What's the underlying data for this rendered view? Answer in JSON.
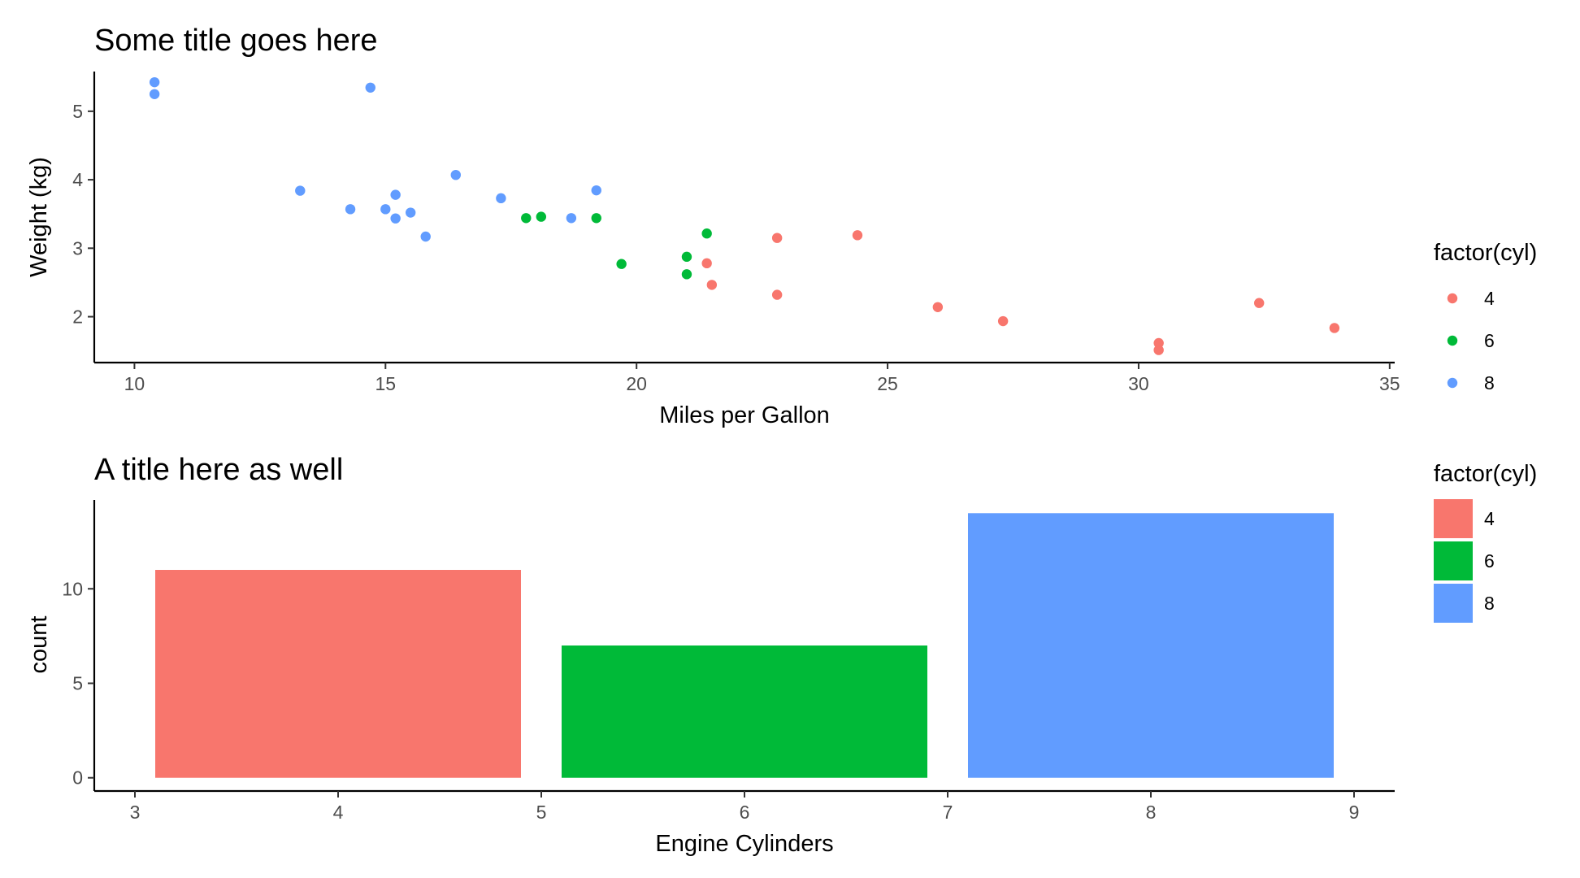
{
  "chart_data": [
    {
      "type": "scatter",
      "title": "Some title goes here",
      "xlabel": "Miles per Gallon",
      "ylabel": "Weight (kg)",
      "xlim": [
        9.2,
        35.1
      ],
      "ylim": [
        1.33,
        5.58
      ],
      "xticks": [
        10,
        15,
        20,
        25,
        30,
        35
      ],
      "yticks": [
        2,
        3,
        4,
        5
      ],
      "grid": false,
      "legend": {
        "title": "factor(cyl)",
        "position": "right",
        "items": [
          "4",
          "6",
          "8"
        ]
      },
      "series": [
        {
          "name": "4",
          "color": "#F8766D",
          "points": [
            [
              22.8,
              2.32
            ],
            [
              24.4,
              3.19
            ],
            [
              22.8,
              3.15
            ],
            [
              32.4,
              2.2
            ],
            [
              30.4,
              1.615
            ],
            [
              33.9,
              1.835
            ],
            [
              21.5,
              2.465
            ],
            [
              27.3,
              1.935
            ],
            [
              26.0,
              2.14
            ],
            [
              30.4,
              1.513
            ],
            [
              21.4,
              2.78
            ]
          ]
        },
        {
          "name": "6",
          "color": "#00BA38",
          "points": [
            [
              21.0,
              2.62
            ],
            [
              21.0,
              2.875
            ],
            [
              21.4,
              3.215
            ],
            [
              18.1,
              3.46
            ],
            [
              19.2,
              3.44
            ],
            [
              17.8,
              3.44
            ],
            [
              19.7,
              2.77
            ]
          ]
        },
        {
          "name": "8",
          "color": "#619CFF",
          "points": [
            [
              18.7,
              3.44
            ],
            [
              14.3,
              3.57
            ],
            [
              16.4,
              4.07
            ],
            [
              17.3,
              3.73
            ],
            [
              15.2,
              3.78
            ],
            [
              10.4,
              5.25
            ],
            [
              10.4,
              5.424
            ],
            [
              14.7,
              5.345
            ],
            [
              15.5,
              3.52
            ],
            [
              15.2,
              3.435
            ],
            [
              13.3,
              3.84
            ],
            [
              19.2,
              3.845
            ],
            [
              15.8,
              3.17
            ],
            [
              15.0,
              3.57
            ]
          ]
        }
      ]
    },
    {
      "type": "bar",
      "title": "A title here as well",
      "xlabel": "Engine Cylinders",
      "ylabel": "count",
      "xlim": [
        2.8,
        9.2
      ],
      "ylim": [
        -0.7,
        14.7
      ],
      "xticks": [
        3,
        4,
        5,
        6,
        7,
        8,
        9
      ],
      "yticks": [
        0,
        5,
        10
      ],
      "grid": false,
      "bar_width": 1.8,
      "legend": {
        "title": "factor(cyl)",
        "position": "right",
        "items": [
          "4",
          "6",
          "8"
        ]
      },
      "categories": [
        "4",
        "6",
        "8"
      ],
      "x": [
        4,
        6,
        8
      ],
      "values": [
        11,
        7,
        14
      ],
      "colors": [
        "#F8766D",
        "#00BA38",
        "#619CFF"
      ]
    }
  ]
}
